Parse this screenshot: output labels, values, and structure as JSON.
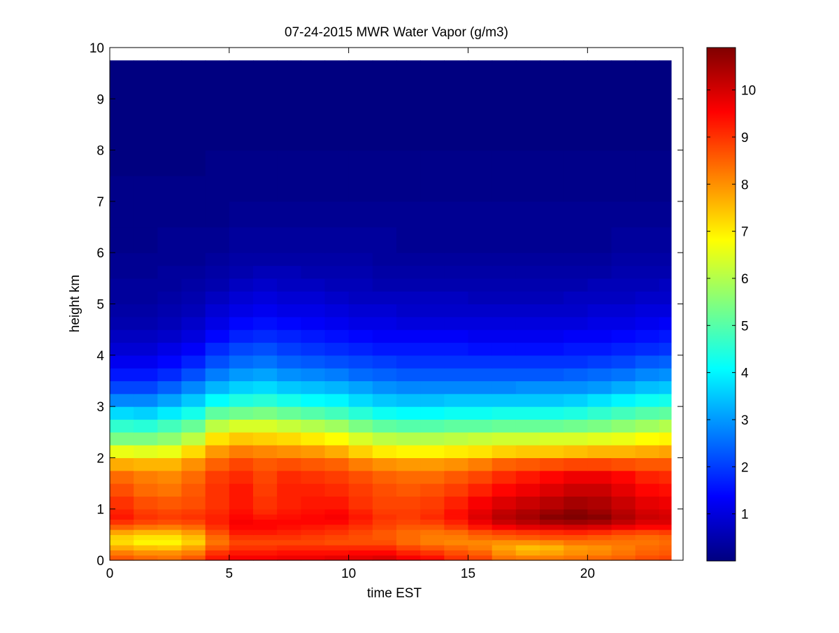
{
  "chart_data": {
    "type": "heatmap",
    "title": "07-24-2015 MWR Water Vapor (g/m3)",
    "xlabel": "time EST",
    "ylabel": "height km",
    "xlim": [
      0,
      24
    ],
    "ylim": [
      0,
      10
    ],
    "xticks": [
      0,
      5,
      10,
      15,
      20
    ],
    "yticks": [
      0,
      1,
      2,
      3,
      4,
      5,
      6,
      7,
      8,
      9,
      10
    ],
    "colorbar": {
      "min": 0,
      "max": 10.9,
      "ticks": [
        1,
        2,
        3,
        4,
        5,
        6,
        7,
        8,
        9,
        10
      ],
      "colormap": "jet"
    },
    "x": [
      0,
      1,
      2,
      3,
      4,
      5,
      6,
      7,
      8,
      9,
      10,
      11,
      12,
      13,
      14,
      15,
      16,
      17,
      18,
      19,
      20,
      21,
      22,
      23,
      23.5
    ],
    "y": [
      0,
      0.1,
      0.2,
      0.3,
      0.4,
      0.5,
      0.6,
      0.7,
      0.8,
      0.9,
      1.0,
      1.25,
      1.5,
      1.75,
      2.0,
      2.25,
      2.5,
      2.75,
      3.0,
      3.25,
      3.5,
      3.75,
      4.0,
      4.25,
      4.5,
      4.75,
      5.0,
      5.25,
      5.5,
      5.75,
      6.0,
      6.5,
      7.0,
      7.5,
      8.0,
      8.5,
      9.0,
      9.5,
      9.75
    ],
    "values": [
      [
        8.6,
        8.4,
        8.3,
        8.6,
        9.3,
        9.6,
        9.6,
        9.7,
        9.7,
        9.8,
        9.8,
        9.9,
        9.6,
        9.4,
        9.0,
        8.8,
        8.3,
        8.2,
        8.2,
        8.3,
        8.4,
        8.5,
        8.7,
        8.8
      ],
      [
        8.2,
        8.0,
        8.0,
        8.2,
        9.0,
        9.3,
        9.3,
        9.4,
        9.4,
        9.4,
        9.5,
        9.5,
        9.2,
        9.0,
        8.7,
        8.5,
        8.0,
        7.7,
        7.8,
        8.0,
        8.1,
        8.3,
        8.5,
        8.6
      ],
      [
        7.7,
        7.5,
        7.4,
        7.8,
        8.6,
        9.0,
        9.0,
        9.1,
        9.1,
        9.1,
        9.1,
        9.1,
        8.8,
        8.6,
        8.4,
        8.2,
        7.8,
        7.5,
        7.6,
        7.9,
        8.0,
        8.2,
        8.4,
        8.5
      ],
      [
        7.2,
        6.9,
        6.9,
        7.3,
        8.3,
        8.8,
        8.8,
        8.8,
        8.8,
        8.7,
        8.7,
        8.7,
        8.4,
        8.2,
        8.1,
        8.1,
        8.0,
        8.0,
        8.1,
        8.3,
        8.3,
        8.3,
        8.3,
        8.4
      ],
      [
        7.3,
        7.1,
        7.1,
        7.5,
        8.4,
        9.0,
        9.0,
        9.0,
        8.9,
        8.8,
        8.7,
        8.6,
        8.4,
        8.2,
        8.2,
        8.4,
        8.5,
        8.6,
        8.7,
        8.7,
        8.6,
        8.5,
        8.4,
        8.5
      ],
      [
        7.8,
        7.6,
        7.6,
        7.9,
        8.7,
        9.3,
        9.3,
        9.2,
        9.1,
        9.0,
        8.8,
        8.6,
        8.4,
        8.3,
        8.4,
        8.7,
        8.9,
        9.0,
        9.1,
        9.2,
        9.1,
        8.9,
        8.8,
        8.9
      ],
      [
        8.5,
        8.3,
        8.2,
        8.4,
        9.0,
        9.5,
        9.5,
        9.4,
        9.3,
        9.2,
        9.0,
        8.8,
        8.6,
        8.6,
        8.9,
        9.3,
        9.6,
        9.8,
        9.9,
        10.0,
        9.9,
        9.7,
        9.5,
        9.5
      ],
      [
        9.0,
        8.8,
        8.7,
        8.8,
        9.2,
        9.6,
        9.5,
        9.5,
        9.5,
        9.5,
        9.2,
        8.9,
        8.8,
        8.9,
        9.2,
        9.7,
        10.1,
        10.3,
        10.5,
        10.6,
        10.5,
        10.2,
        9.9,
        9.9
      ],
      [
        9.3,
        9.0,
        8.9,
        9.0,
        9.2,
        9.5,
        9.3,
        9.4,
        9.5,
        9.6,
        9.3,
        9.0,
        8.9,
        9.1,
        9.4,
        9.9,
        10.3,
        10.5,
        10.8,
        10.9,
        10.8,
        10.4,
        10.1,
        10.0
      ],
      [
        9.2,
        8.9,
        8.8,
        8.9,
        9.1,
        9.4,
        9.1,
        9.3,
        9.4,
        9.5,
        9.2,
        8.9,
        8.9,
        9.0,
        9.4,
        9.8,
        10.2,
        10.4,
        10.6,
        10.8,
        10.6,
        10.3,
        10.0,
        9.9
      ],
      [
        9.0,
        8.7,
        8.6,
        8.7,
        9.0,
        9.3,
        9.0,
        9.2,
        9.3,
        9.3,
        9.0,
        8.8,
        8.8,
        8.9,
        9.2,
        9.6,
        9.9,
        10.1,
        10.3,
        10.5,
        10.4,
        10.1,
        9.8,
        9.7
      ],
      [
        8.7,
        8.4,
        8.3,
        8.6,
        9.0,
        9.3,
        8.9,
        9.2,
        9.2,
        9.1,
        8.9,
        8.7,
        8.6,
        8.7,
        8.9,
        9.2,
        9.5,
        9.7,
        9.9,
        10.1,
        10.1,
        9.8,
        9.5,
        9.4
      ],
      [
        8.4,
        8.2,
        8.1,
        8.4,
        8.9,
        9.1,
        8.8,
        9.1,
        9.0,
        8.9,
        8.7,
        8.5,
        8.4,
        8.4,
        8.6,
        8.8,
        9.1,
        9.3,
        9.5,
        9.7,
        9.7,
        9.5,
        9.2,
        9.1
      ],
      [
        7.7,
        7.6,
        7.6,
        8.0,
        8.5,
        8.8,
        8.6,
        8.7,
        8.6,
        8.5,
        8.2,
        8.0,
        7.9,
        7.9,
        8.0,
        8.2,
        8.5,
        8.6,
        8.7,
        8.8,
        8.8,
        8.7,
        8.6,
        8.6
      ],
      [
        6.6,
        6.5,
        6.6,
        7.2,
        7.9,
        8.2,
        8.1,
        8.0,
        7.9,
        7.7,
        7.3,
        7.0,
        6.9,
        6.9,
        7.0,
        7.1,
        7.3,
        7.4,
        7.4,
        7.5,
        7.6,
        7.6,
        7.7,
        7.8
      ],
      [
        5.4,
        5.4,
        5.6,
        6.1,
        7.1,
        7.4,
        7.3,
        7.2,
        7.0,
        6.8,
        6.4,
        6.1,
        6.0,
        6.0,
        6.1,
        6.2,
        6.3,
        6.3,
        6.4,
        6.4,
        6.5,
        6.6,
        6.8,
        6.9
      ],
      [
        4.6,
        4.5,
        4.8,
        5.2,
        6.1,
        6.4,
        6.4,
        6.2,
        6.0,
        5.8,
        5.4,
        5.1,
        5.0,
        5.0,
        5.1,
        5.1,
        5.2,
        5.2,
        5.2,
        5.3,
        5.4,
        5.6,
        5.8,
        6.0
      ],
      [
        3.7,
        3.6,
        3.9,
        4.3,
        5.1,
        5.3,
        5.4,
        5.2,
        5.0,
        4.8,
        4.5,
        4.2,
        4.1,
        4.1,
        4.2,
        4.2,
        4.3,
        4.3,
        4.3,
        4.4,
        4.6,
        4.8,
        5.0,
        5.1
      ],
      [
        2.8,
        2.8,
        3.1,
        3.5,
        4.1,
        4.4,
        4.5,
        4.3,
        4.1,
        4.0,
        3.7,
        3.5,
        3.4,
        3.4,
        3.5,
        3.5,
        3.5,
        3.5,
        3.5,
        3.6,
        3.8,
        4.0,
        4.2,
        4.3
      ],
      [
        2.1,
        2.1,
        2.4,
        2.8,
        3.3,
        3.6,
        3.7,
        3.5,
        3.4,
        3.3,
        3.1,
        2.9,
        2.8,
        2.8,
        2.8,
        2.8,
        2.8,
        2.9,
        2.9,
        2.9,
        3.0,
        3.2,
        3.4,
        3.5
      ],
      [
        1.6,
        1.6,
        1.8,
        2.2,
        2.7,
        3.0,
        3.1,
        2.9,
        2.8,
        2.7,
        2.5,
        2.4,
        2.3,
        2.3,
        2.3,
        2.3,
        2.3,
        2.3,
        2.3,
        2.4,
        2.5,
        2.6,
        2.8,
        2.9
      ],
      [
        1.2,
        1.2,
        1.4,
        1.7,
        2.2,
        2.5,
        2.6,
        2.4,
        2.3,
        2.2,
        2.1,
        2.0,
        1.9,
        1.9,
        1.9,
        1.9,
        1.9,
        1.9,
        1.9,
        1.9,
        2.0,
        2.1,
        2.3,
        2.4
      ],
      [
        0.9,
        0.9,
        1.1,
        1.3,
        1.8,
        2.1,
        2.2,
        2.0,
        1.9,
        1.8,
        1.7,
        1.6,
        1.6,
        1.6,
        1.6,
        1.5,
        1.5,
        1.5,
        1.5,
        1.6,
        1.6,
        1.7,
        1.8,
        1.9
      ],
      [
        0.7,
        0.7,
        0.8,
        1.0,
        1.4,
        1.7,
        1.8,
        1.7,
        1.6,
        1.5,
        1.4,
        1.3,
        1.3,
        1.3,
        1.3,
        1.2,
        1.2,
        1.2,
        1.2,
        1.3,
        1.3,
        1.4,
        1.5,
        1.6
      ],
      [
        0.5,
        0.5,
        0.6,
        0.8,
        1.1,
        1.4,
        1.5,
        1.4,
        1.3,
        1.2,
        1.1,
        1.1,
        1.0,
        1.0,
        1.0,
        1.0,
        1.0,
        1.0,
        1.0,
        1.0,
        1.1,
        1.1,
        1.2,
        1.3
      ],
      [
        0.4,
        0.4,
        0.5,
        0.6,
        0.9,
        1.1,
        1.2,
        1.1,
        1.1,
        1.0,
        0.9,
        0.9,
        0.8,
        0.8,
        0.8,
        0.8,
        0.8,
        0.8,
        0.8,
        0.8,
        0.9,
        0.9,
        1.0,
        1.0
      ],
      [
        0.3,
        0.3,
        0.4,
        0.5,
        0.7,
        0.9,
        1.0,
        0.9,
        0.9,
        0.8,
        0.7,
        0.7,
        0.7,
        0.7,
        0.7,
        0.6,
        0.6,
        0.6,
        0.6,
        0.7,
        0.7,
        0.7,
        0.8,
        0.8
      ],
      [
        0.3,
        0.3,
        0.3,
        0.4,
        0.5,
        0.7,
        0.8,
        0.7,
        0.7,
        0.6,
        0.6,
        0.5,
        0.5,
        0.5,
        0.5,
        0.5,
        0.5,
        0.5,
        0.5,
        0.5,
        0.6,
        0.6,
        0.6,
        0.7
      ],
      [
        0.2,
        0.2,
        0.3,
        0.3,
        0.4,
        0.5,
        0.6,
        0.6,
        0.5,
        0.5,
        0.5,
        0.4,
        0.4,
        0.4,
        0.4,
        0.4,
        0.4,
        0.4,
        0.4,
        0.4,
        0.4,
        0.5,
        0.5,
        0.5
      ],
      [
        0.2,
        0.2,
        0.2,
        0.2,
        0.3,
        0.4,
        0.4,
        0.4,
        0.4,
        0.4,
        0.4,
        0.3,
        0.3,
        0.3,
        0.3,
        0.3,
        0.3,
        0.3,
        0.3,
        0.3,
        0.3,
        0.4,
        0.4,
        0.4
      ],
      [
        0.1,
        0.1,
        0.2,
        0.2,
        0.2,
        0.3,
        0.3,
        0.3,
        0.3,
        0.3,
        0.3,
        0.3,
        0.2,
        0.2,
        0.2,
        0.2,
        0.2,
        0.2,
        0.2,
        0.2,
        0.2,
        0.3,
        0.3,
        0.3
      ],
      [
        0.1,
        0.1,
        0.1,
        0.1,
        0.1,
        0.2,
        0.2,
        0.2,
        0.2,
        0.2,
        0.2,
        0.2,
        0.2,
        0.2,
        0.2,
        0.2,
        0.2,
        0.2,
        0.2,
        0.2,
        0.2,
        0.2,
        0.2,
        0.2
      ],
      [
        0.1,
        0.1,
        0.1,
        0.1,
        0.1,
        0.1,
        0.1,
        0.1,
        0.1,
        0.1,
        0.1,
        0.1,
        0.1,
        0.1,
        0.1,
        0.1,
        0.1,
        0.1,
        0.1,
        0.1,
        0.1,
        0.1,
        0.1,
        0.1
      ],
      [
        0.0,
        0.0,
        0.0,
        0.0,
        0.1,
        0.1,
        0.1,
        0.1,
        0.1,
        0.1,
        0.1,
        0.1,
        0.1,
        0.1,
        0.1,
        0.1,
        0.1,
        0.1,
        0.1,
        0.1,
        0.1,
        0.1,
        0.1,
        0.1
      ],
      [
        0.0,
        0.0,
        0.0,
        0.0,
        0.0,
        0.0,
        0.0,
        0.0,
        0.0,
        0.0,
        0.0,
        0.0,
        0.0,
        0.0,
        0.0,
        0.0,
        0.0,
        0.0,
        0.0,
        0.0,
        0.0,
        0.0,
        0.0,
        0.0
      ],
      [
        0.0,
        0.0,
        0.0,
        0.0,
        0.0,
        0.0,
        0.0,
        0.0,
        0.0,
        0.0,
        0.0,
        0.0,
        0.0,
        0.0,
        0.0,
        0.0,
        0.0,
        0.0,
        0.0,
        0.0,
        0.0,
        0.0,
        0.0,
        0.0
      ],
      [
        0.0,
        0.0,
        0.0,
        0.0,
        0.0,
        0.0,
        0.0,
        0.0,
        0.0,
        0.0,
        0.0,
        0.0,
        0.0,
        0.0,
        0.0,
        0.0,
        0.0,
        0.0,
        0.0,
        0.0,
        0.0,
        0.0,
        0.0,
        0.0
      ],
      [
        0.0,
        0.0,
        0.0,
        0.0,
        0.0,
        0.0,
        0.0,
        0.0,
        0.0,
        0.0,
        0.0,
        0.0,
        0.0,
        0.0,
        0.0,
        0.0,
        0.0,
        0.0,
        0.0,
        0.0,
        0.0,
        0.0,
        0.0,
        0.0
      ]
    ]
  }
}
